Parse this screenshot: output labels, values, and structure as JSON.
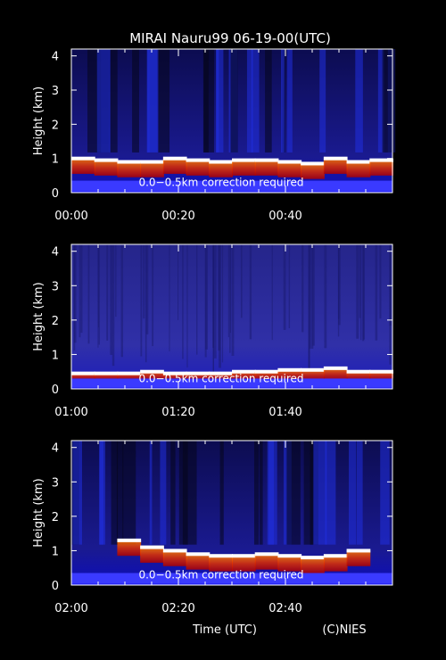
{
  "chart_data": {
    "type": "heatmap",
    "title": "MIRAI Nauru99 06-19-00(UTC)",
    "ylabel": "Height (km)",
    "xlabel": "Time (UTC)",
    "credit": "(C)NIES",
    "annotation": "0.0−0.5km correction required",
    "yticks": [
      "0",
      "1",
      "2",
      "3",
      "4"
    ],
    "ylim": [
      0,
      4.2
    ],
    "colors": {
      "background": "#000000",
      "low": "#1a1aa8",
      "high": "#ffffff",
      "mid": "#d02000"
    },
    "panels": [
      {
        "time_range_min": [
          0,
          60
        ],
        "xticks": [
          "00:00",
          "00:20",
          "00:40"
        ],
        "cloud_base_km": [
          1.0,
          0.95,
          0.9,
          0.9,
          1.0,
          0.95,
          0.9,
          0.95,
          0.95,
          0.9,
          0.85,
          1.0,
          0.9,
          0.95
        ]
      },
      {
        "time_range_min": [
          60,
          120
        ],
        "xticks": [
          "01:00",
          "01:20",
          "01:40"
        ],
        "cloud_base_km": [
          0.45,
          0.45,
          0.45,
          0.5,
          0.45,
          0.45,
          0.45,
          0.5,
          0.5,
          0.55,
          0.55,
          0.6,
          0.5,
          0.5
        ]
      },
      {
        "time_range_min": [
          120,
          180
        ],
        "xticks": [
          "02:00",
          "02:20",
          "02:40"
        ],
        "cloud_base_km": [
          null,
          null,
          1.3,
          1.1,
          1.0,
          0.9,
          0.85,
          0.85,
          0.9,
          0.85,
          0.8,
          0.85,
          1.0,
          null
        ]
      }
    ]
  }
}
